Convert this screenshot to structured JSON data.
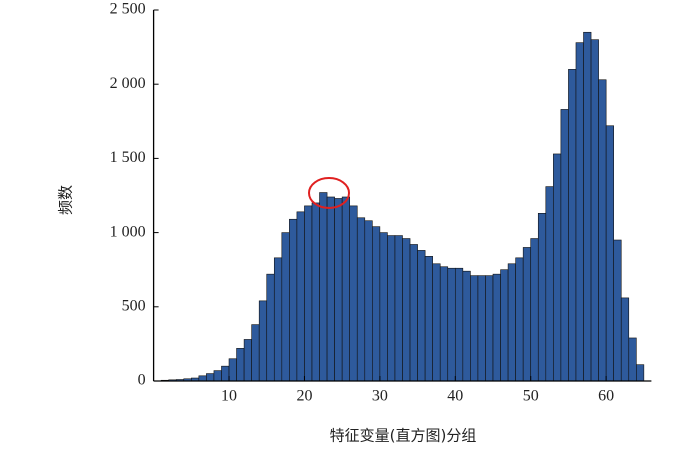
{
  "chart_data": {
    "type": "histogram",
    "x_label": "特征变量(直方图)分组",
    "y_label": "频数",
    "bins": [
      1,
      2,
      3,
      4,
      5,
      6,
      7,
      8,
      9,
      10,
      11,
      12,
      13,
      14,
      15,
      16,
      17,
      18,
      19,
      20,
      21,
      22,
      23,
      24,
      25,
      26,
      27,
      28,
      29,
      30,
      31,
      32,
      33,
      34,
      35,
      36,
      37,
      38,
      39,
      40,
      41,
      42,
      43,
      44,
      45,
      46,
      47,
      48,
      49,
      50,
      51,
      52,
      53,
      54,
      55,
      56,
      57,
      58,
      59,
      60,
      61,
      62,
      63,
      64,
      65
    ],
    "counts": [
      5,
      8,
      10,
      15,
      20,
      35,
      50,
      70,
      100,
      150,
      220,
      280,
      380,
      540,
      720,
      830,
      1000,
      1090,
      1140,
      1180,
      1200,
      1270,
      1240,
      1230,
      1240,
      1180,
      1100,
      1080,
      1040,
      1000,
      980,
      980,
      960,
      920,
      880,
      840,
      790,
      770,
      760,
      760,
      740,
      710,
      710,
      710,
      720,
      750,
      790,
      830,
      900,
      960,
      1130,
      1310,
      1530,
      1830,
      2100,
      2280,
      2350,
      2300,
      2030,
      1720,
      950,
      560,
      290,
      110
    ],
    "color": "#2e5a9c",
    "xlim": [
      0,
      66
    ],
    "xticks": [
      10,
      20,
      30,
      40,
      50,
      60
    ],
    "ylim": [
      0,
      2500
    ],
    "yticks": [
      0,
      500,
      {
        "value": 1000,
        "label": "1 000"
      },
      {
        "value": 1500,
        "label": "1 500"
      },
      {
        "value": 2000,
        "label": "2 000"
      },
      {
        "value": 2500,
        "label": "2 500"
      }
    ]
  }
}
